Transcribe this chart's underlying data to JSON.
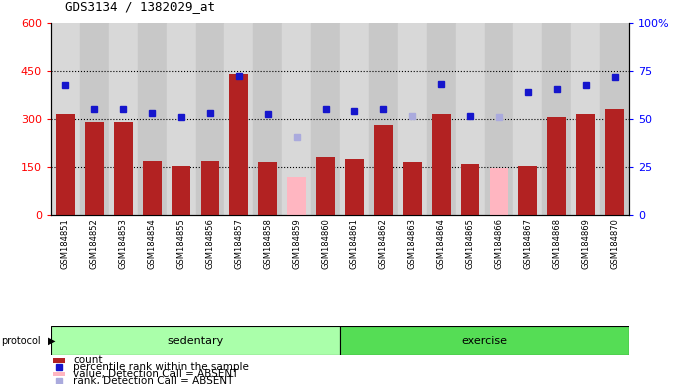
{
  "title": "GDS3134 / 1382029_at",
  "samples": [
    "GSM184851",
    "GSM184852",
    "GSM184853",
    "GSM184854",
    "GSM184855",
    "GSM184856",
    "GSM184857",
    "GSM184858",
    "GSM184859",
    "GSM184860",
    "GSM184861",
    "GSM184862",
    "GSM184863",
    "GSM184864",
    "GSM184865",
    "GSM184866",
    "GSM184867",
    "GSM184868",
    "GSM184869",
    "GSM184870"
  ],
  "count_values": [
    315,
    290,
    290,
    170,
    152,
    170,
    440,
    165,
    null,
    180,
    175,
    280,
    165,
    315,
    160,
    null,
    152,
    305,
    315,
    330
  ],
  "absent_value_values": [
    null,
    null,
    null,
    null,
    null,
    null,
    null,
    null,
    120,
    null,
    null,
    null,
    null,
    null,
    null,
    148,
    null,
    null,
    null,
    null
  ],
  "percentile_values": [
    405,
    330,
    330,
    320,
    305,
    320,
    435,
    315,
    null,
    330,
    325,
    330,
    null,
    410,
    310,
    null,
    385,
    395,
    405,
    430
  ],
  "absent_rank_values": [
    null,
    null,
    null,
    null,
    null,
    null,
    null,
    null,
    245,
    null,
    null,
    null,
    310,
    null,
    null,
    305,
    null,
    null,
    null,
    null
  ],
  "sedentary_count": 10,
  "ylim_left": [
    0,
    600
  ],
  "ylim_right": [
    0,
    100
  ],
  "yticks_left": [
    0,
    150,
    300,
    450,
    600
  ],
  "yticks_right": [
    0,
    25,
    50,
    75,
    100
  ],
  "hgrid_lines": [
    150,
    300,
    450
  ],
  "bar_color_red": "#B22222",
  "bar_color_pink": "#FFB6C1",
  "dot_color_blue": "#1515CC",
  "dot_color_lightblue": "#AAAADD",
  "col_bg_even": "#D8D8D8",
  "col_bg_odd": "#C8C8C8",
  "plot_bg": "#FFFFFF",
  "sed_color": "#AAFFAA",
  "ex_color": "#55DD55",
  "proto_border": "#000000"
}
